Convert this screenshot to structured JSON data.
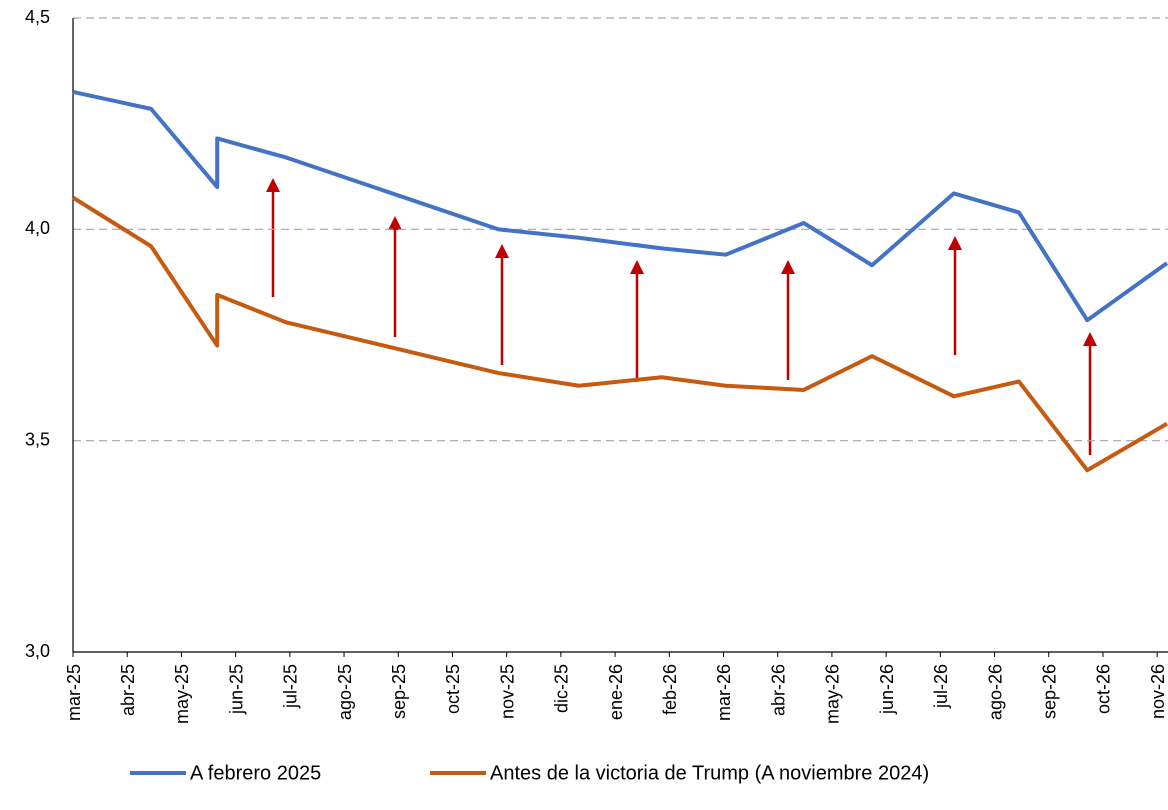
{
  "chart_data": {
    "type": "line",
    "x": [
      0,
      1.44,
      2.66,
      2.66,
      3.93,
      7.85,
      9.33,
      10.86,
      12.04,
      13.48,
      14.74,
      16.25,
      17.45,
      18.71,
      20.18
    ],
    "series": [
      {
        "name": "A febrero 2025",
        "color": "#4472c4",
        "values": [
          4.325,
          4.285,
          4.1,
          4.215,
          4.17,
          4.0,
          3.98,
          3.955,
          3.94,
          4.015,
          3.915,
          4.085,
          4.04,
          3.785,
          3.92
        ]
      },
      {
        "name": "Antes de la victoria de Trump (A noviembre 2024)",
        "color": "#c55a11",
        "values": [
          4.075,
          3.96,
          3.725,
          3.845,
          3.78,
          3.66,
          3.63,
          3.65,
          3.63,
          3.62,
          3.7,
          3.605,
          3.64,
          3.43,
          3.54
        ]
      }
    ],
    "xlim": [
      0,
      20.2
    ],
    "xticks": [
      {
        "value": 0,
        "label": "mar-25"
      },
      {
        "value": 1,
        "label": "abr-25"
      },
      {
        "value": 2,
        "label": "may-25"
      },
      {
        "value": 3,
        "label": "jun-25"
      },
      {
        "value": 4,
        "label": "jul-25"
      },
      {
        "value": 5,
        "label": "ago-25"
      },
      {
        "value": 6,
        "label": "sep-25"
      },
      {
        "value": 7,
        "label": "oct-25"
      },
      {
        "value": 8,
        "label": "nov-25"
      },
      {
        "value": 9,
        "label": "dic-25"
      },
      {
        "value": 10,
        "label": "ene-26"
      },
      {
        "value": 11,
        "label": "feb-26"
      },
      {
        "value": 12,
        "label": "mar-26"
      },
      {
        "value": 13,
        "label": "abr-26"
      },
      {
        "value": 14,
        "label": "may-26"
      },
      {
        "value": 15,
        "label": "jun-26"
      },
      {
        "value": 16,
        "label": "jul-26"
      },
      {
        "value": 17,
        "label": "ago-26"
      },
      {
        "value": 18,
        "label": "sep-26"
      },
      {
        "value": 19,
        "label": "oct-26"
      },
      {
        "value": 20,
        "label": "nov-26"
      }
    ],
    "ylim": [
      3.0,
      4.5
    ],
    "yticks": [
      {
        "value": 3.0,
        "label": "3,0"
      },
      {
        "value": 3.5,
        "label": "3,5"
      },
      {
        "value": 4.0,
        "label": "4,0"
      },
      {
        "value": 4.5,
        "label": "4,5"
      }
    ],
    "grid": true
  }
}
